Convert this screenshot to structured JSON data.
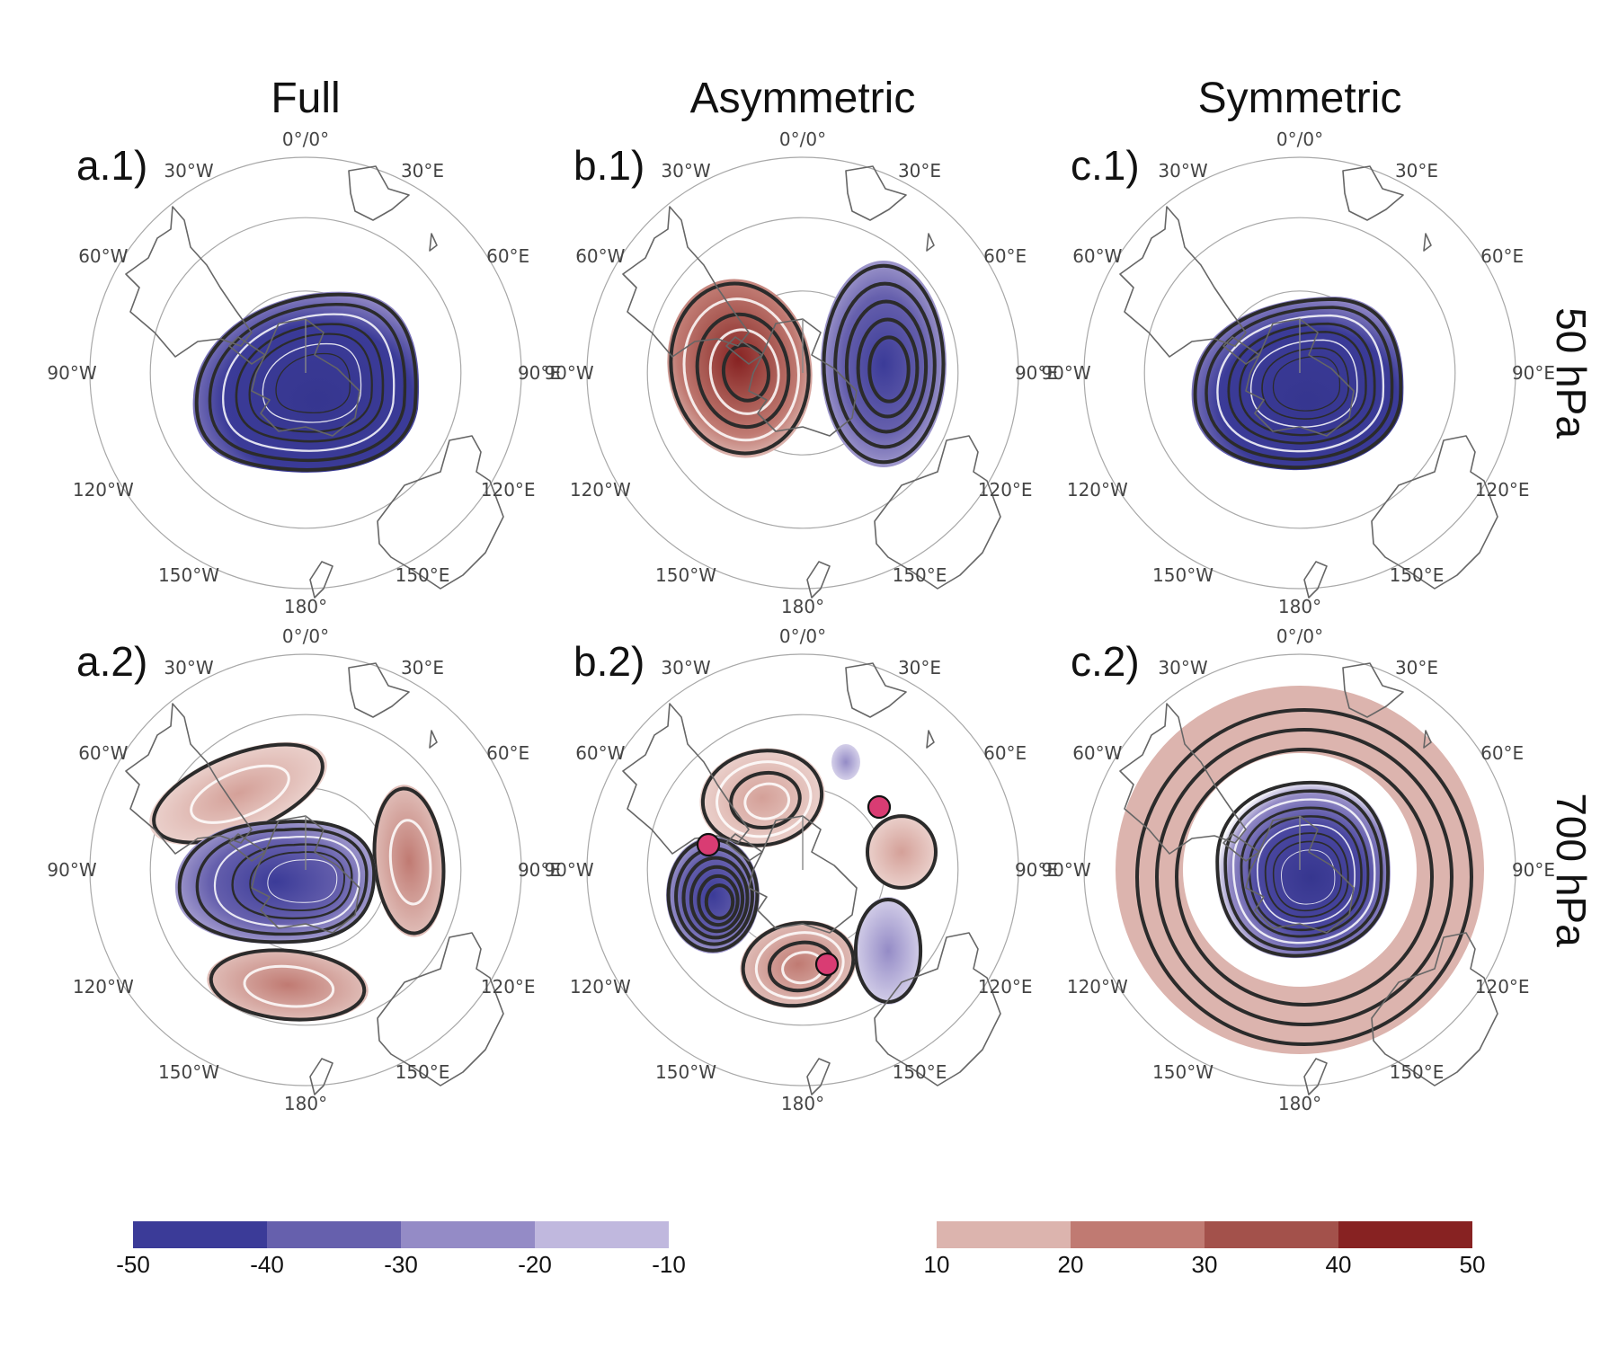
{
  "columns": [
    "Full",
    "Asymmetric",
    "Symmetric"
  ],
  "rows": [
    "50 hPa",
    "700 hPa"
  ],
  "panel_labels": [
    "a.1)",
    "b.1)",
    "c.1)",
    "a.2)",
    "b.2)",
    "c.2)"
  ],
  "longitude_labels": [
    "0°/0°",
    "30°E",
    "60°E",
    "90°E",
    "120°E",
    "150°E",
    "180°",
    "150°W",
    "120°W",
    "90°W",
    "60°W",
    "30°W"
  ],
  "colorbar_negative": {
    "ticks": [
      "-50",
      "-40",
      "-30",
      "-20",
      "-10"
    ],
    "colors": [
      "#3b3b98",
      "#6660ad",
      "#948bc6",
      "#c0b8de"
    ]
  },
  "colorbar_positive": {
    "ticks": [
      "10",
      "20",
      "30",
      "40",
      "50"
    ],
    "colors": [
      "#dcb4ae",
      "#c07a72",
      "#a3514b",
      "#872222"
    ]
  },
  "markers": {
    "color": "#d93c73"
  },
  "chart_data": [
    {
      "type": "heatmap",
      "panel": "a.1)",
      "column": "Full",
      "row": "50 hPa",
      "description_values": [
        {
          "sign": "negative",
          "min_value": -50,
          "center_lon": 150,
          "lat": -70
        }
      ]
    },
    {
      "type": "heatmap",
      "panel": "b.1)",
      "column": "Asymmetric",
      "row": "50 hPa",
      "description_values": [
        {
          "sign": "positive",
          "max_value": 50,
          "center_lon": -80,
          "lat": -70
        },
        {
          "sign": "negative",
          "min_value": -50,
          "center_lon": 90,
          "lat": -70
        }
      ]
    },
    {
      "type": "heatmap",
      "panel": "c.1)",
      "column": "Symmetric",
      "row": "50 hPa",
      "description_values": [
        {
          "sign": "negative",
          "min_value": -50,
          "center_lon": 135,
          "lat": -75
        }
      ]
    },
    {
      "type": "heatmap",
      "panel": "a.2)",
      "column": "Full",
      "row": "700 hPa",
      "description_values": [
        {
          "sign": "positive",
          "max_value": 20,
          "center_lon": -45,
          "lat": -55
        },
        {
          "sign": "positive",
          "max_value": 30,
          "center_lon": 90,
          "lat": -55
        },
        {
          "sign": "positive",
          "max_value": 30,
          "center_lon": -170,
          "lat": -55
        },
        {
          "sign": "negative",
          "min_value": -50,
          "center_lon": -110,
          "lat": -70
        }
      ]
    },
    {
      "type": "heatmap",
      "panel": "b.2)",
      "column": "Asymmetric",
      "row": "700 hPa",
      "description_values": [
        {
          "sign": "positive",
          "max_value": 20,
          "center_lon": -20,
          "lat": -60
        },
        {
          "sign": "positive",
          "max_value": 20,
          "center_lon": 90,
          "lat": -55
        },
        {
          "sign": "positive",
          "max_value": 30,
          "center_lon": -170,
          "lat": -55
        },
        {
          "sign": "negative",
          "min_value": -50,
          "center_lon": -100,
          "lat": -55
        },
        {
          "sign": "negative",
          "min_value": -20,
          "center_lon": 140,
          "lat": -55
        },
        {
          "sign": "negative",
          "min_value": -10,
          "center_lon": 20,
          "lat": -58
        }
      ],
      "markers": [
        {
          "lon": -85,
          "lat": -50
        },
        {
          "lon": 50,
          "lat": -55
        },
        {
          "lon": 165,
          "lat": -45
        }
      ]
    },
    {
      "type": "heatmap",
      "panel": "c.2)",
      "column": "Symmetric",
      "row": "700 hPa",
      "description_values": [
        {
          "sign": "positive",
          "max_value": 20,
          "ring_lat": -50
        },
        {
          "sign": "negative",
          "min_value": -50,
          "center_lon": 135,
          "lat": -78
        }
      ]
    }
  ]
}
